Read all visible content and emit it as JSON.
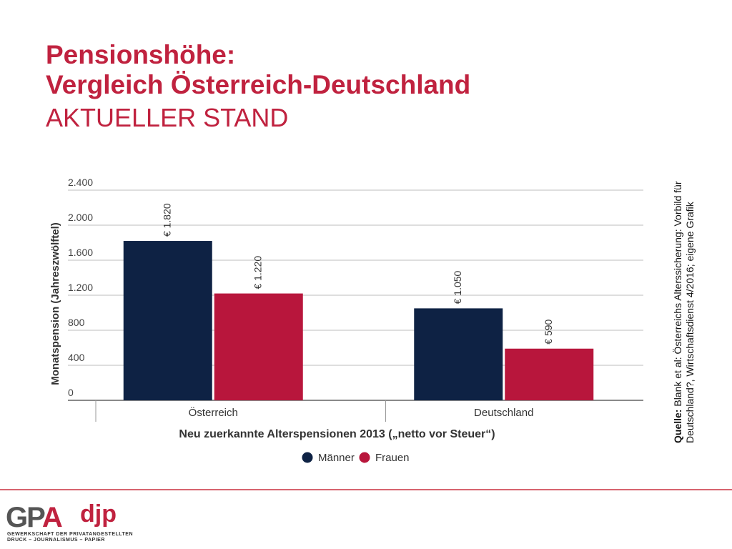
{
  "header": {
    "title_line1": "Pensionshöhe:",
    "title_line2": "Vergleich Österreich-Deutschland",
    "title_line3": "AKTUELLER STAND"
  },
  "source": {
    "label": "Quelle:",
    "text": " Blank et al: Österreichs Alterssicherung: Vorbild für Deutschland?, Wirtschaftsdienst 4/2016; eigene Grafik"
  },
  "logo": {
    "mark_a": "GP",
    "mark_b": "A",
    "djp": "djp",
    "sub1": "GEWERKSCHAFT DER PRIVATANGESTELLTEN",
    "sub2": "DRUCK – JOURNALISMUS – PAPIER"
  },
  "colors": {
    "maenner": "#0e2244",
    "frauen": "#b8163c",
    "title": "#c0223f"
  },
  "chart_data": {
    "type": "bar",
    "categories": [
      "Österreich",
      "Deutschland"
    ],
    "series": [
      {
        "name": "Männer",
        "values": [
          1820,
          1050
        ],
        "labels": [
          "€ 1.820",
          "€ 1.050"
        ],
        "color": "#0e2244"
      },
      {
        "name": "Frauen",
        "values": [
          1220,
          590
        ],
        "labels": [
          "€ 1.220",
          "€ 590"
        ],
        "color": "#b8163c"
      }
    ],
    "yticks": [
      0,
      400,
      800,
      1200,
      1600,
      2000,
      2400
    ],
    "ytick_labels": [
      "0",
      "400",
      "800",
      "1.200",
      "1.600",
      "2.000",
      "2.400"
    ],
    "ylim": [
      0,
      2400
    ],
    "xlabel": "Neu zuerkannte Alterspensionen 2013 („netto vor Steuer“)",
    "ylabel": "Monatspension (Jahreszwölftel)",
    "grid": true,
    "legend_position": "bottom"
  }
}
